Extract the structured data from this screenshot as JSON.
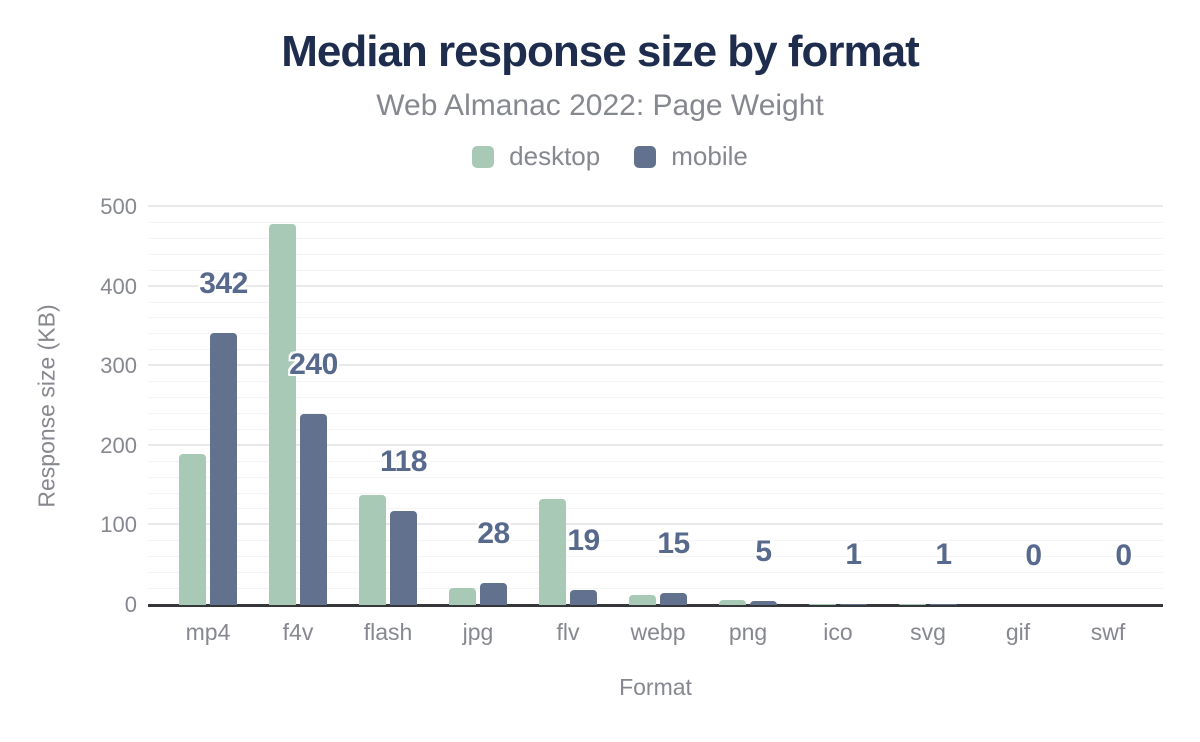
{
  "page": {
    "background": "#ffffff"
  },
  "colors": {
    "title": "#1e2c4e",
    "muted_text": "#86888f",
    "data_label": "#57698c",
    "axis_line": "#36373b",
    "gridline_major": "#e9e9eb",
    "gridline_minor": "#f4f4f6",
    "desktop": "#a9c9b7",
    "mobile": "#62718e"
  },
  "chart_data": {
    "type": "bar",
    "title": "Median response size by format",
    "subtitle": "Web Almanac 2022: Page Weight",
    "xlabel": "Format",
    "ylabel": "Response size (KB)",
    "ylim": [
      0,
      500
    ],
    "yticks": [
      0,
      100,
      200,
      300,
      400,
      500
    ],
    "minor_gridline_step": 20,
    "grid": true,
    "legend_position": "top",
    "categories": [
      "mp4",
      "f4v",
      "flash",
      "jpg",
      "flv",
      "webp",
      "png",
      "ico",
      "svg",
      "gif",
      "swf"
    ],
    "series": [
      {
        "name": "desktop",
        "color": "#a9c9b7",
        "values": [
          190,
          479,
          138,
          22,
          133,
          12,
          6,
          1,
          1,
          0,
          0
        ]
      },
      {
        "name": "mobile",
        "color": "#62718e",
        "values": [
          342,
          240,
          118,
          28,
          19,
          15,
          5,
          1,
          1,
          0,
          0
        ]
      }
    ],
    "bar_value_labels": {
      "source_series": "mobile",
      "values": [
        "342",
        "240",
        "118",
        "28",
        "19",
        "15",
        "5",
        "1",
        "1",
        "0",
        "0"
      ]
    }
  }
}
